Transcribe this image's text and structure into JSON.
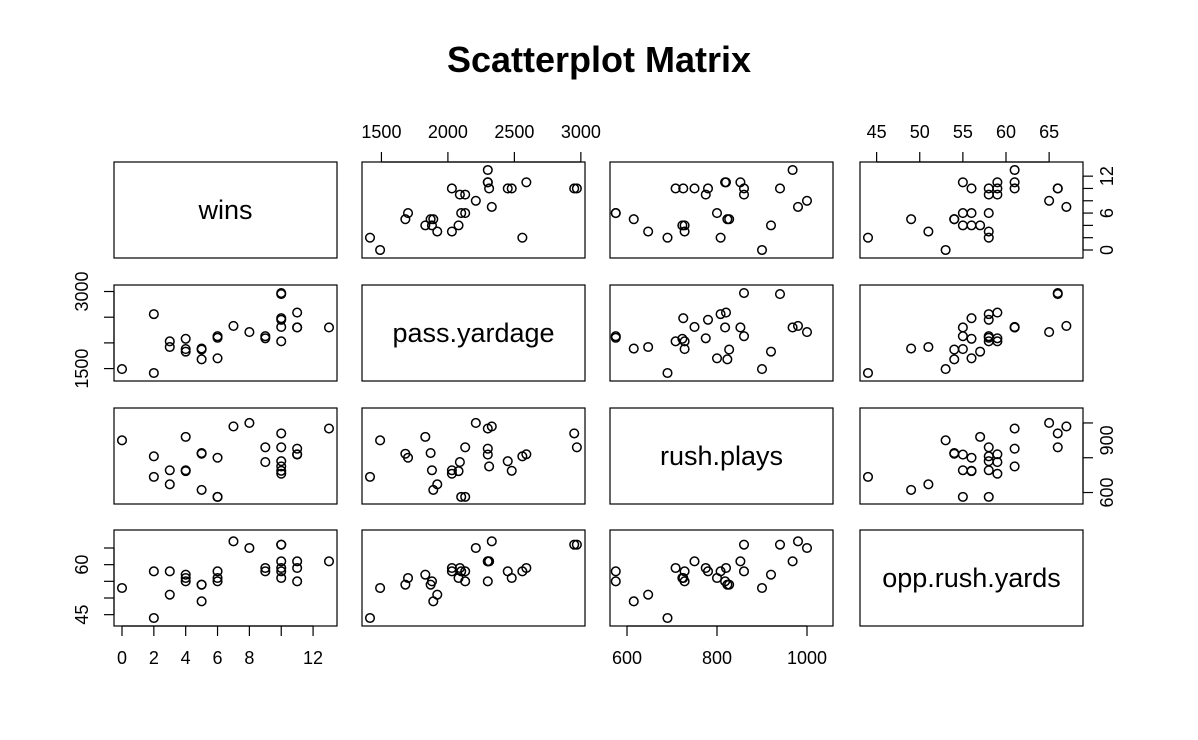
{
  "chart_data": {
    "type": "scatter",
    "title": "Scatterplot Matrix",
    "variables": [
      "wins",
      "pass.yardage",
      "rush.plays",
      "opp.rush.yards"
    ],
    "ranges": [
      [
        0,
        13
      ],
      [
        1414,
        2971
      ],
      [
        580,
        1040
      ],
      [
        44,
        68
      ]
    ],
    "ticks": [
      [
        0,
        2,
        4,
        6,
        8,
        10,
        12
      ],
      [
        1500,
        2000,
        2500,
        3000
      ],
      [
        600,
        800,
        1000
      ],
      [
        45,
        50,
        55,
        60,
        65
      ]
    ],
    "axis_labels": {
      "top": [
        {
          "col": 1,
          "ticks": [
            1500,
            2000,
            2500,
            3000
          ]
        },
        {
          "col": 3,
          "ticks": [
            45,
            50,
            55,
            60,
            65
          ]
        }
      ],
      "bottom": [
        {
          "col": 0,
          "ticks": [
            0,
            2,
            4,
            6,
            8,
            12
          ]
        },
        {
          "col": 2,
          "ticks": [
            600,
            800,
            1000
          ]
        }
      ],
      "left": [
        {
          "row": 1,
          "ticks": [
            1500,
            3000
          ]
        },
        {
          "row": 3,
          "ticks": [
            45,
            60
          ]
        }
      ],
      "right": [
        {
          "row": 0,
          "ticks": [
            0,
            6,
            12
          ]
        },
        {
          "row": 2,
          "ticks": [
            600,
            900
          ]
        }
      ]
    },
    "records": [
      [
        13,
        2300,
        968,
        61
      ],
      [
        10,
        2970,
        860,
        66
      ],
      [
        10,
        2950,
        940,
        66
      ],
      [
        10,
        2450,
        780,
        58
      ],
      [
        11,
        2590,
        820,
        59
      ],
      [
        11,
        2300,
        818,
        55
      ],
      [
        10,
        2480,
        725,
        56
      ],
      [
        11,
        2300,
        852,
        61
      ],
      [
        4,
        1880,
        728,
        55
      ],
      [
        2,
        2560,
        808,
        58
      ],
      [
        7,
        2330,
        980,
        67
      ],
      [
        10,
        2310,
        750,
        61
      ],
      [
        9,
        2090,
        775,
        59
      ],
      [
        9,
        2130,
        860,
        58
      ],
      [
        6,
        2130,
        575,
        55
      ],
      [
        5,
        1870,
        827,
        54
      ],
      [
        5,
        1890,
        615,
        49
      ],
      [
        5,
        1680,
        823,
        54
      ],
      [
        6,
        2100,
        575,
        58
      ],
      [
        4,
        2080,
        723,
        56
      ],
      [
        3,
        1920,
        647,
        51
      ],
      [
        3,
        2030,
        728,
        58
      ],
      [
        4,
        1830,
        920,
        57
      ],
      [
        10,
        2030,
        708,
        59
      ],
      [
        6,
        1700,
        800,
        56
      ],
      [
        8,
        2210,
        1000,
        65
      ],
      [
        2,
        1414,
        690,
        44
      ],
      [
        0,
        1490,
        900,
        53
      ]
    ]
  }
}
